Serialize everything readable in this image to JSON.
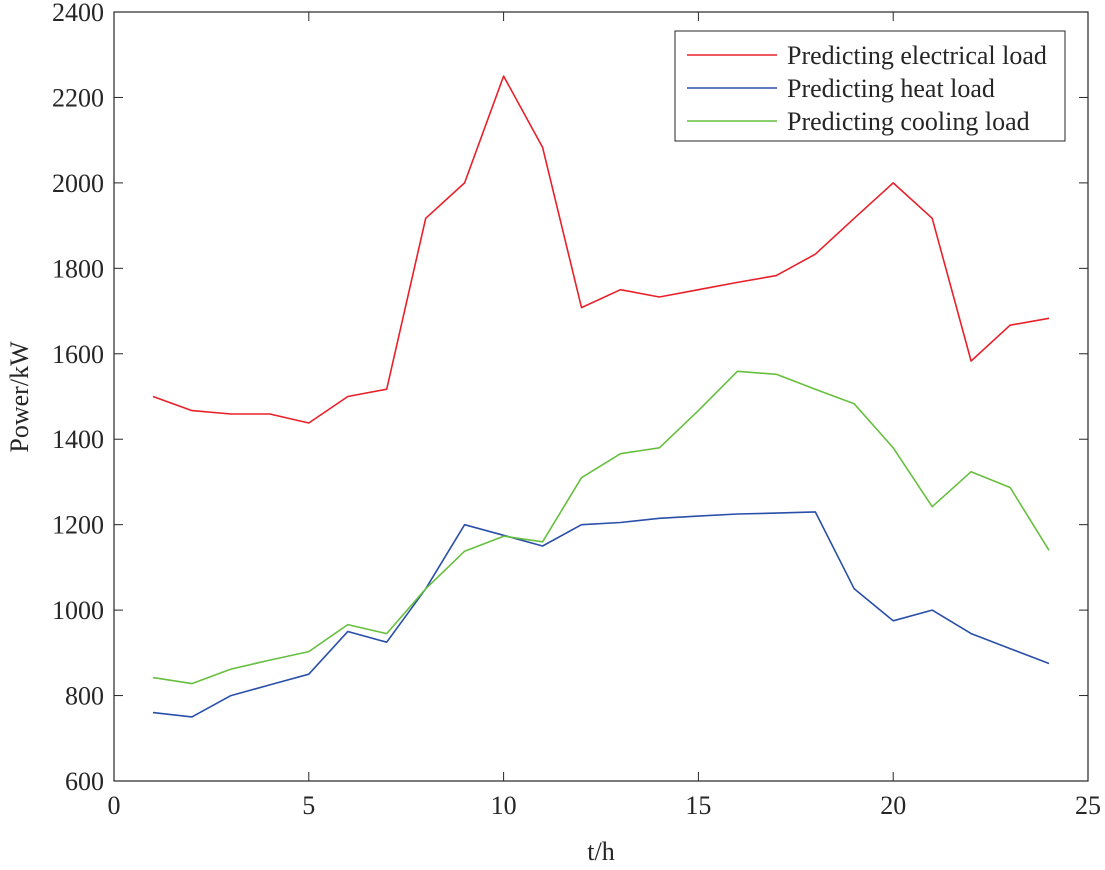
{
  "chart_data": {
    "type": "line",
    "title": "",
    "xlabel": "t/h",
    "ylabel": "Power/kW",
    "xlim": [
      0,
      25
    ],
    "ylim": [
      600,
      2400
    ],
    "xticks": [
      0,
      5,
      10,
      15,
      20,
      25
    ],
    "yticks": [
      600,
      800,
      1000,
      1200,
      1400,
      1600,
      1800,
      2000,
      2200,
      2400
    ],
    "grid": false,
    "legend_position": "top-right",
    "x": [
      1,
      2,
      3,
      4,
      5,
      6,
      7,
      8,
      9,
      10,
      11,
      12,
      13,
      14,
      15,
      16,
      17,
      18,
      19,
      20,
      21,
      22,
      23,
      24
    ],
    "series": [
      {
        "name": "Predicting electrical load",
        "color": "#e8202a",
        "values": [
          1500,
          1467,
          1459,
          1459,
          1438,
          1500,
          1517,
          1917,
          2000,
          2250,
          2083,
          1708,
          1750,
          1733,
          1750,
          1767,
          1783,
          1833,
          1917,
          2000,
          1917,
          1583,
          1667,
          1683
        ]
      },
      {
        "name": "Predicting heat load",
        "color": "#2a4fa8",
        "values": [
          760,
          750,
          800,
          825,
          850,
          950,
          925,
          1050,
          1200,
          1175,
          1150,
          1200,
          1205,
          1215,
          1220,
          1225,
          1227,
          1230,
          1050,
          975,
          1000,
          945,
          910,
          875
        ]
      },
      {
        "name": "Predicting cooling load",
        "color": "#67bf3f",
        "values": [
          842,
          828,
          862,
          883,
          903,
          966,
          945,
          1050,
          1138,
          1173,
          1160,
          1310,
          1366,
          1380,
          1467,
          1559,
          1552,
          1517,
          1483,
          1380,
          1242,
          1324,
          1287,
          1140
        ]
      }
    ]
  }
}
